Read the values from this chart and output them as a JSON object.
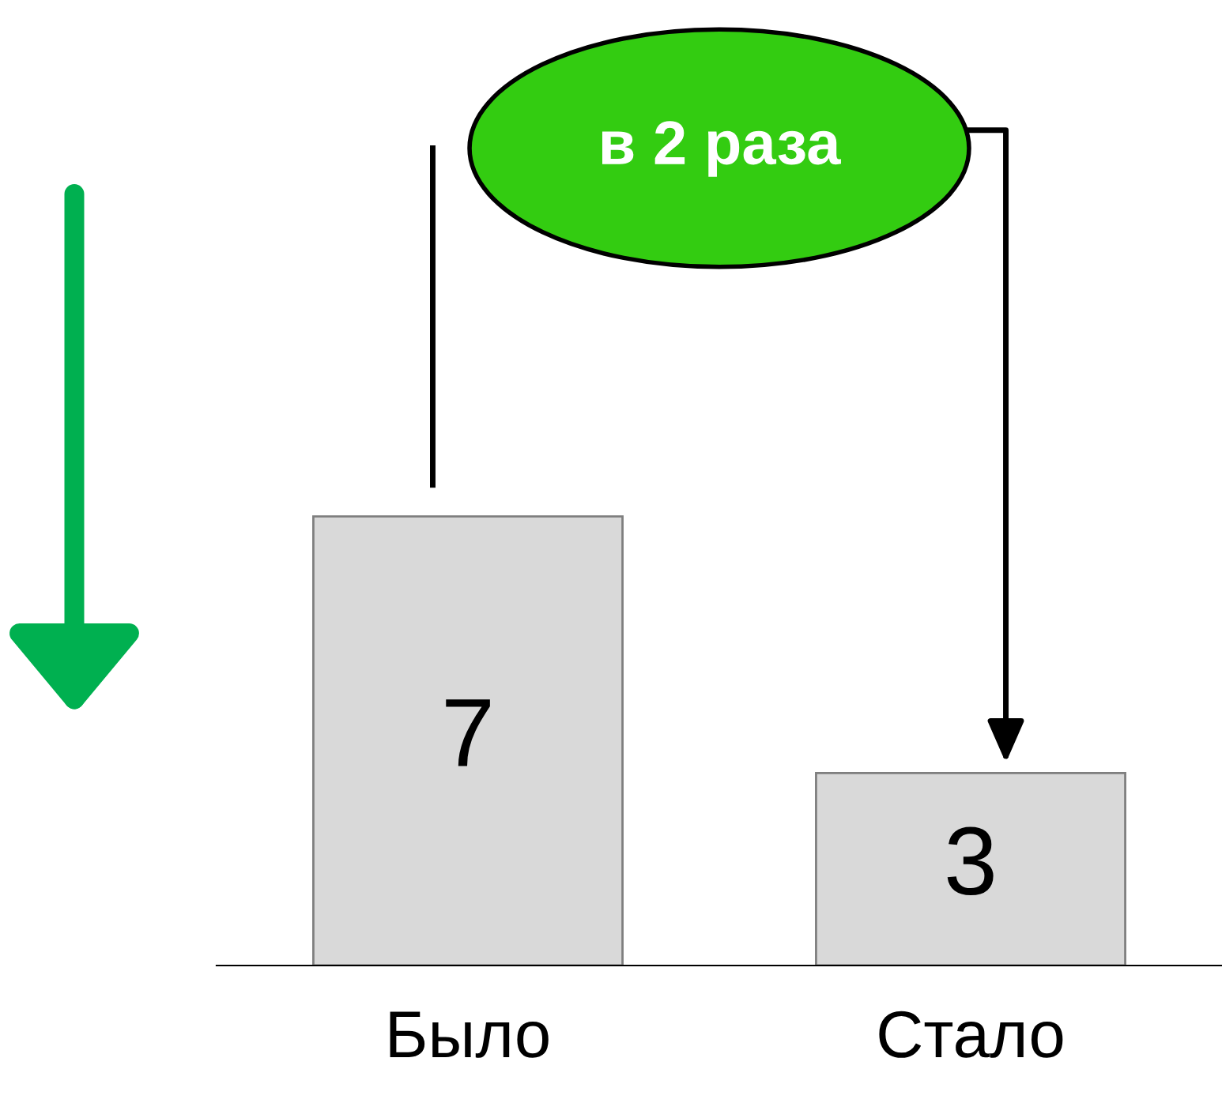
{
  "chart_data": {
    "type": "bar",
    "categories": [
      "Было",
      "Стало"
    ],
    "values": [
      7,
      3
    ],
    "color": "#d9d9d9",
    "data_labels": true,
    "legend": false,
    "tick_labels": "x",
    "annotations": [
      "в 2 раза"
    ]
  }
}
